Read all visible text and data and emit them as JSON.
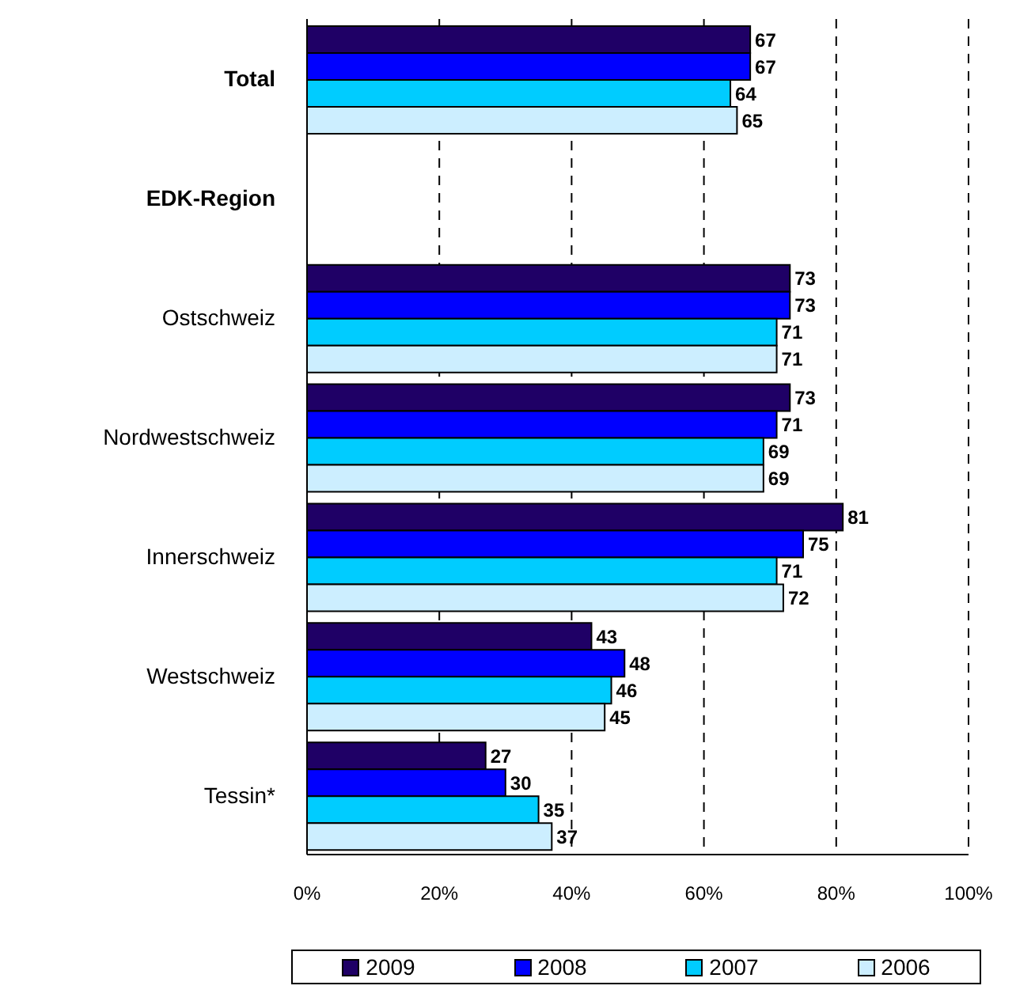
{
  "chart_data": {
    "type": "bar",
    "orientation": "horizontal",
    "categories": [
      "Total",
      "EDK-Region",
      "Ostschweiz",
      "Nordwestschweiz",
      "Innerschweiz",
      "Westschweiz",
      "Tessin*"
    ],
    "series": [
      {
        "name": "2009",
        "color": "#1f0066",
        "values": [
          67,
          null,
          73,
          73,
          81,
          43,
          27
        ]
      },
      {
        "name": "2008",
        "color": "#0000ff",
        "values": [
          67,
          null,
          73,
          71,
          75,
          48,
          30
        ]
      },
      {
        "name": "2007",
        "color": "#00ccff",
        "values": [
          64,
          null,
          71,
          69,
          71,
          46,
          35
        ]
      },
      {
        "name": "2006",
        "color": "#cceeff",
        "values": [
          65,
          null,
          71,
          69,
          72,
          45,
          37
        ]
      }
    ],
    "xlim": [
      0,
      100
    ],
    "xticks": [
      {
        "value": 0,
        "label": "0%"
      },
      {
        "value": 20,
        "label": "20%"
      },
      {
        "value": 40,
        "label": "40%"
      },
      {
        "value": 60,
        "label": "60%"
      },
      {
        "value": 80,
        "label": "80%"
      },
      {
        "value": 100,
        "label": "100%"
      }
    ],
    "grid": "x",
    "legend": "bottom",
    "data_labels": true
  }
}
